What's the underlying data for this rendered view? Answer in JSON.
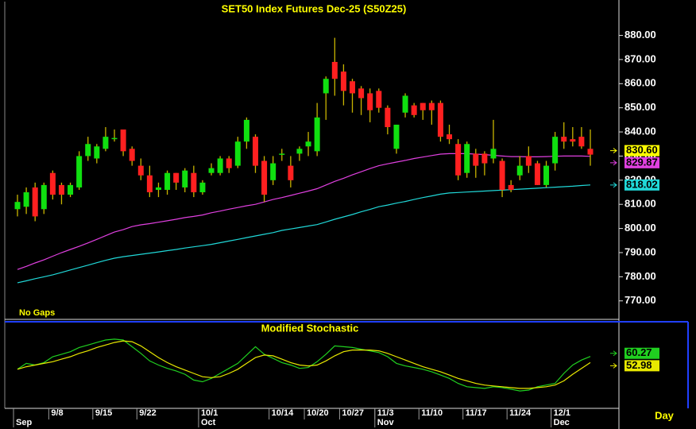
{
  "chart_data": [
    {
      "type": "candlestick",
      "title": "SET50  Index  Futures  Dec-25  (S50Z25)",
      "annotation": "No Gaps",
      "xlabel": "Day",
      "categories": [
        null,
        null,
        null,
        null,
        "9/8",
        null,
        null,
        null,
        null,
        "9/15",
        null,
        null,
        null,
        null,
        "9/22",
        null,
        null,
        null,
        null,
        null,
        null,
        "10/1",
        null,
        null,
        null,
        null,
        null,
        null,
        null,
        "10/14",
        null,
        null,
        null,
        "10/20",
        null,
        null,
        null,
        "10/27",
        null,
        null,
        null,
        "11/3",
        null,
        null,
        null,
        null,
        "11/10",
        null,
        null,
        null,
        null,
        "11/17",
        null,
        null,
        null,
        null,
        "11/24",
        null,
        null,
        null,
        null,
        "12/1",
        null,
        null,
        null,
        null
      ],
      "months": [
        "Sep",
        null,
        null,
        null,
        null,
        null,
        null,
        null,
        null,
        null,
        null,
        null,
        null,
        null,
        null,
        null,
        null,
        null,
        null,
        null,
        null,
        "Oct",
        null,
        null,
        null,
        null,
        null,
        null,
        null,
        null,
        null,
        null,
        null,
        null,
        null,
        null,
        null,
        null,
        null,
        null,
        null,
        "Nov",
        null,
        null,
        null,
        null,
        null,
        null,
        null,
        null,
        null,
        null,
        null,
        null,
        null,
        null,
        null,
        null,
        null,
        null,
        null,
        "Dec",
        null,
        null,
        null,
        null
      ],
      "open": [
        808,
        809,
        817,
        808,
        823,
        818,
        814,
        817,
        830,
        829,
        833,
        837,
        841,
        833,
        826,
        822,
        816,
        816,
        823,
        817,
        823,
        815,
        823,
        823,
        829,
        826,
        836,
        838,
        828,
        820,
        831,
        826,
        831,
        834,
        832,
        856,
        869,
        865,
        861,
        858,
        856,
        857,
        850,
        833,
        848,
        851,
        852,
        852,
        852,
        839,
        835,
        823,
        831,
        831,
        829,
        828,
        818,
        822,
        830,
        827,
        818,
        827,
        838,
        837,
        838,
        833
      ],
      "high": [
        814,
        817,
        819,
        819,
        824,
        819,
        819,
        832,
        838,
        835,
        842,
        841,
        841,
        834,
        829,
        826,
        819,
        824,
        823,
        825,
        826,
        820,
        827,
        830,
        830,
        838,
        846,
        839,
        830,
        830,
        833,
        830,
        834,
        840,
        852,
        863,
        879,
        868,
        862,
        859,
        858,
        858,
        851,
        843,
        856,
        852,
        852,
        853,
        853,
        843,
        837,
        836,
        833,
        832,
        845,
        829,
        820,
        830,
        834,
        828,
        828,
        840,
        844,
        842,
        842,
        841
      ],
      "low": [
        805,
        806,
        803,
        806,
        812,
        810,
        813,
        816,
        828,
        827,
        832,
        836,
        830,
        826,
        820,
        813,
        813,
        814,
        816,
        815,
        813,
        814,
        822,
        822,
        823,
        825,
        833,
        823,
        811,
        818,
        828,
        817,
        828,
        830,
        830,
        845,
        855,
        851,
        848,
        847,
        844,
        848,
        839,
        831,
        846,
        846,
        845,
        843,
        836,
        835,
        820,
        821,
        821,
        822,
        827,
        813,
        815,
        820,
        823,
        818,
        817,
        824,
        833,
        834,
        833,
        826
      ],
      "close": [
        811,
        815,
        805,
        818,
        814,
        814,
        818,
        830,
        835,
        834,
        838,
        837.5,
        832,
        828,
        822,
        815,
        817,
        823,
        819,
        824,
        815,
        819,
        825,
        829,
        825,
        836,
        845,
        826,
        814,
        827,
        831,
        820,
        833,
        836,
        846,
        862,
        862,
        857,
        856,
        854,
        849,
        850,
        842,
        843,
        855,
        847,
        849,
        849,
        838,
        837,
        822,
        835,
        826,
        827,
        833,
        816,
        816,
        826,
        826,
        818,
        826,
        838,
        836,
        836,
        834,
        830.6
      ],
      "last_label": "830.60",
      "up_color": "#10e010",
      "down_color": "#ff2020",
      "wick_color": "#c8b400",
      "last_color": "#ffff00",
      "overlays": [
        {
          "color": "#e040e0",
          "values": [
            783,
            784.3,
            785.7,
            787,
            788.5,
            790,
            791.3,
            792.6,
            794,
            795.5,
            797,
            798.5,
            799.5,
            800.8,
            801.5,
            802,
            802.6,
            803.2,
            803.8,
            804.5,
            805,
            805.6,
            806.5,
            807.2,
            808,
            808.7,
            809.4,
            810,
            811,
            812,
            812.8,
            813.7,
            814.6,
            815.5,
            816.5,
            818,
            819.5,
            820.8,
            822.2,
            823.5,
            824.8,
            826,
            826.8,
            827.5,
            828.2,
            829,
            829.6,
            830.2,
            830.8,
            831,
            831,
            831,
            830.8,
            830.6,
            830.3,
            830,
            829.8,
            829.8,
            829.7,
            829.7,
            829.8,
            829.9,
            830,
            830,
            830,
            829.87
          ]
        },
        {
          "color": "#20d8d8",
          "values": [
            777.5,
            778.3,
            779.2,
            780,
            780.8,
            781.8,
            782.8,
            783.8,
            784.8,
            785.8,
            786.8,
            787.7,
            788.3,
            788.8,
            789.3,
            789.8,
            790.3,
            790.8,
            791.3,
            791.9,
            792.4,
            792.9,
            793.4,
            794.1,
            794.8,
            795.5,
            796.2,
            796.9,
            797.6,
            798.3,
            799.2,
            799.8,
            800.4,
            801,
            801.6,
            802.7,
            803.8,
            804.8,
            805.8,
            806.9,
            807.9,
            809,
            809.7,
            810.5,
            811.2,
            812,
            812.8,
            813.5,
            814.2,
            814.7,
            814.9,
            815.1,
            815.3,
            815.5,
            815.7,
            815.9,
            816.1,
            816.3,
            816.5,
            816.7,
            816.9,
            817.1,
            817.3,
            817.5,
            817.8,
            818.02
          ]
        }
      ],
      "ylim": [
        763,
        894
      ],
      "yticks": [
        {
          "value": 770,
          "label": "770.00"
        },
        {
          "value": 780,
          "label": "780.00"
        },
        {
          "value": 790,
          "label": "790.00"
        },
        {
          "value": 800,
          "label": "800.00"
        },
        {
          "value": 810,
          "label": "810.00"
        },
        {
          "value": 820,
          "label": "820.00"
        },
        {
          "value": 830,
          "label": "830.00"
        },
        {
          "value": 840,
          "label": "840.00"
        },
        {
          "value": 850,
          "label": "850.00"
        },
        {
          "value": 860,
          "label": "860.00"
        },
        {
          "value": 870,
          "label": "870.00"
        },
        {
          "value": 880,
          "label": "880.00"
        }
      ]
    },
    {
      "type": "line",
      "title": "Modified  Stochastic",
      "ylim": [
        0,
        100
      ],
      "series": [
        {
          "color": "#20d020",
          "values": [
            45,
            52,
            50,
            53,
            60,
            63,
            66,
            71,
            74,
            77,
            80,
            81,
            80,
            72,
            64,
            55,
            50,
            46,
            43,
            39,
            32,
            30,
            34,
            40,
            46,
            52,
            62,
            72,
            63,
            58,
            53,
            50,
            46,
            47,
            54,
            63,
            73,
            72,
            71,
            69,
            67,
            65,
            60,
            52,
            49,
            47,
            45,
            42,
            38,
            34,
            28,
            24,
            23,
            22,
            24,
            23,
            21,
            19,
            20,
            24,
            26,
            28,
            40,
            50,
            56,
            60.27
          ]
        },
        {
          "color": "#e8e800",
          "values": [
            45,
            48,
            50,
            52,
            54,
            57,
            60,
            64,
            67,
            71,
            74,
            77,
            79,
            78,
            73,
            66,
            59,
            53,
            48,
            44,
            40,
            36,
            35,
            36,
            40,
            45,
            52,
            59,
            62,
            61,
            57,
            53,
            50,
            49,
            50,
            55,
            61,
            66,
            68,
            68,
            68,
            67,
            64,
            60,
            56,
            52,
            48,
            45,
            42,
            38,
            34,
            31,
            28,
            26,
            25,
            24,
            23,
            22,
            22,
            23,
            24,
            26,
            31,
            39,
            46,
            52.98
          ]
        }
      ]
    }
  ]
}
